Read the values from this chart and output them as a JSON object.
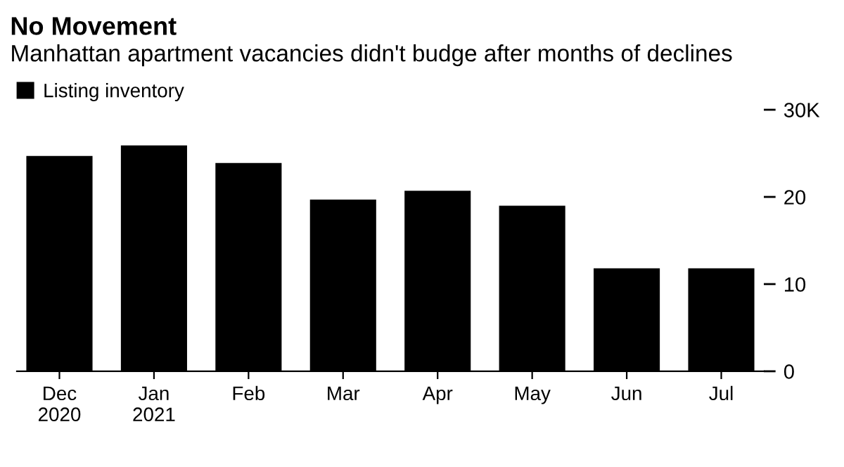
{
  "chart_data": {
    "type": "bar",
    "title": "No Movement",
    "subtitle": "Manhattan apartment vacancies didn't budge after months of declines",
    "categories": [
      "Dec\n2020",
      "Jan\n2021",
      "Feb",
      "Mar",
      "Apr",
      "May",
      "Jun",
      "Jul"
    ],
    "series": [
      {
        "name": "Listing inventory",
        "color": "#000000",
        "values": [
          24.7,
          25.9,
          23.9,
          19.7,
          20.7,
          19.0,
          11.8,
          11.8
        ]
      }
    ],
    "ylim": [
      0,
      30
    ],
    "yticks": [
      0,
      10,
      20,
      {
        "value": 30,
        "label": "30K"
      }
    ],
    "grid": false,
    "legend": "top left"
  }
}
